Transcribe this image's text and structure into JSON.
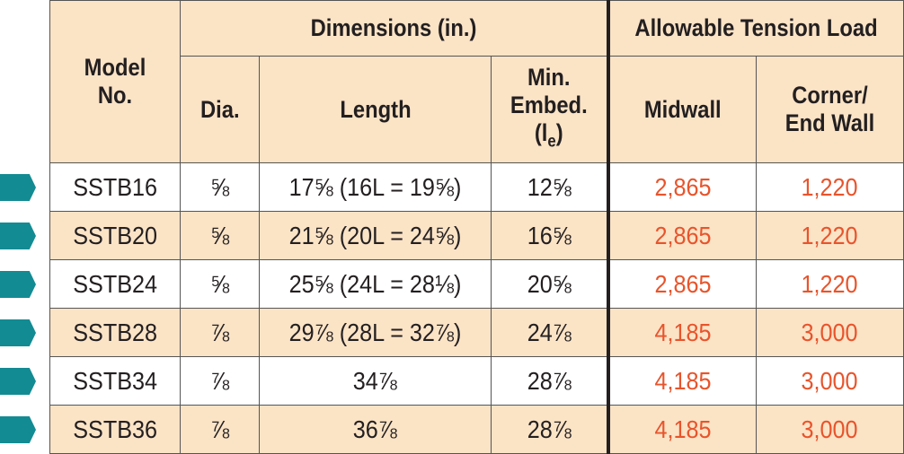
{
  "headers": {
    "model_no": "Model No.",
    "dimensions": "Dimensions (in.)",
    "allowable": "Allowable Tension Load",
    "dia": "Dia.",
    "length": "Length",
    "min_embed_line1": "Min.",
    "min_embed_line2": "Embed.",
    "min_embed_symbol": "l",
    "min_embed_sub": "e",
    "midwall": "Midwall",
    "corner_line1": "Corner/",
    "corner_line2": "End Wall"
  },
  "rows": [
    {
      "model": "SSTB16",
      "dia": "⅝",
      "length": "17⅝ (16L = 19⅝)",
      "embed": "12⅝",
      "midwall": "2,865",
      "corner": "1,220"
    },
    {
      "model": "SSTB20",
      "dia": "⅝",
      "length": "21⅝ (20L = 24⅝)",
      "embed": "16⅝",
      "midwall": "2,865",
      "corner": "1,220"
    },
    {
      "model": "SSTB24",
      "dia": "⅝",
      "length": "25⅝ (24L = 28⅛)",
      "embed": "20⅝",
      "midwall": "2,865",
      "corner": "1,220"
    },
    {
      "model": "SSTB28",
      "dia": "⅞",
      "length": "29⅞ (28L = 32⅞)",
      "embed": "24⅞",
      "midwall": "4,185",
      "corner": "3,000"
    },
    {
      "model": "SSTB34",
      "dia": "⅞",
      "length": "34⅞",
      "embed": "28⅞",
      "midwall": "4,185",
      "corner": "3,000"
    },
    {
      "model": "SSTB36",
      "dia": "⅞",
      "length": "36⅞",
      "embed": "28⅞",
      "midwall": "4,185",
      "corner": "3,000"
    }
  ],
  "colors": {
    "header_bg": "#fbe3c6",
    "load_text": "#e8542b",
    "marker": "#138b93"
  },
  "icons": {
    "row_marker": "arrow-tab-icon"
  }
}
